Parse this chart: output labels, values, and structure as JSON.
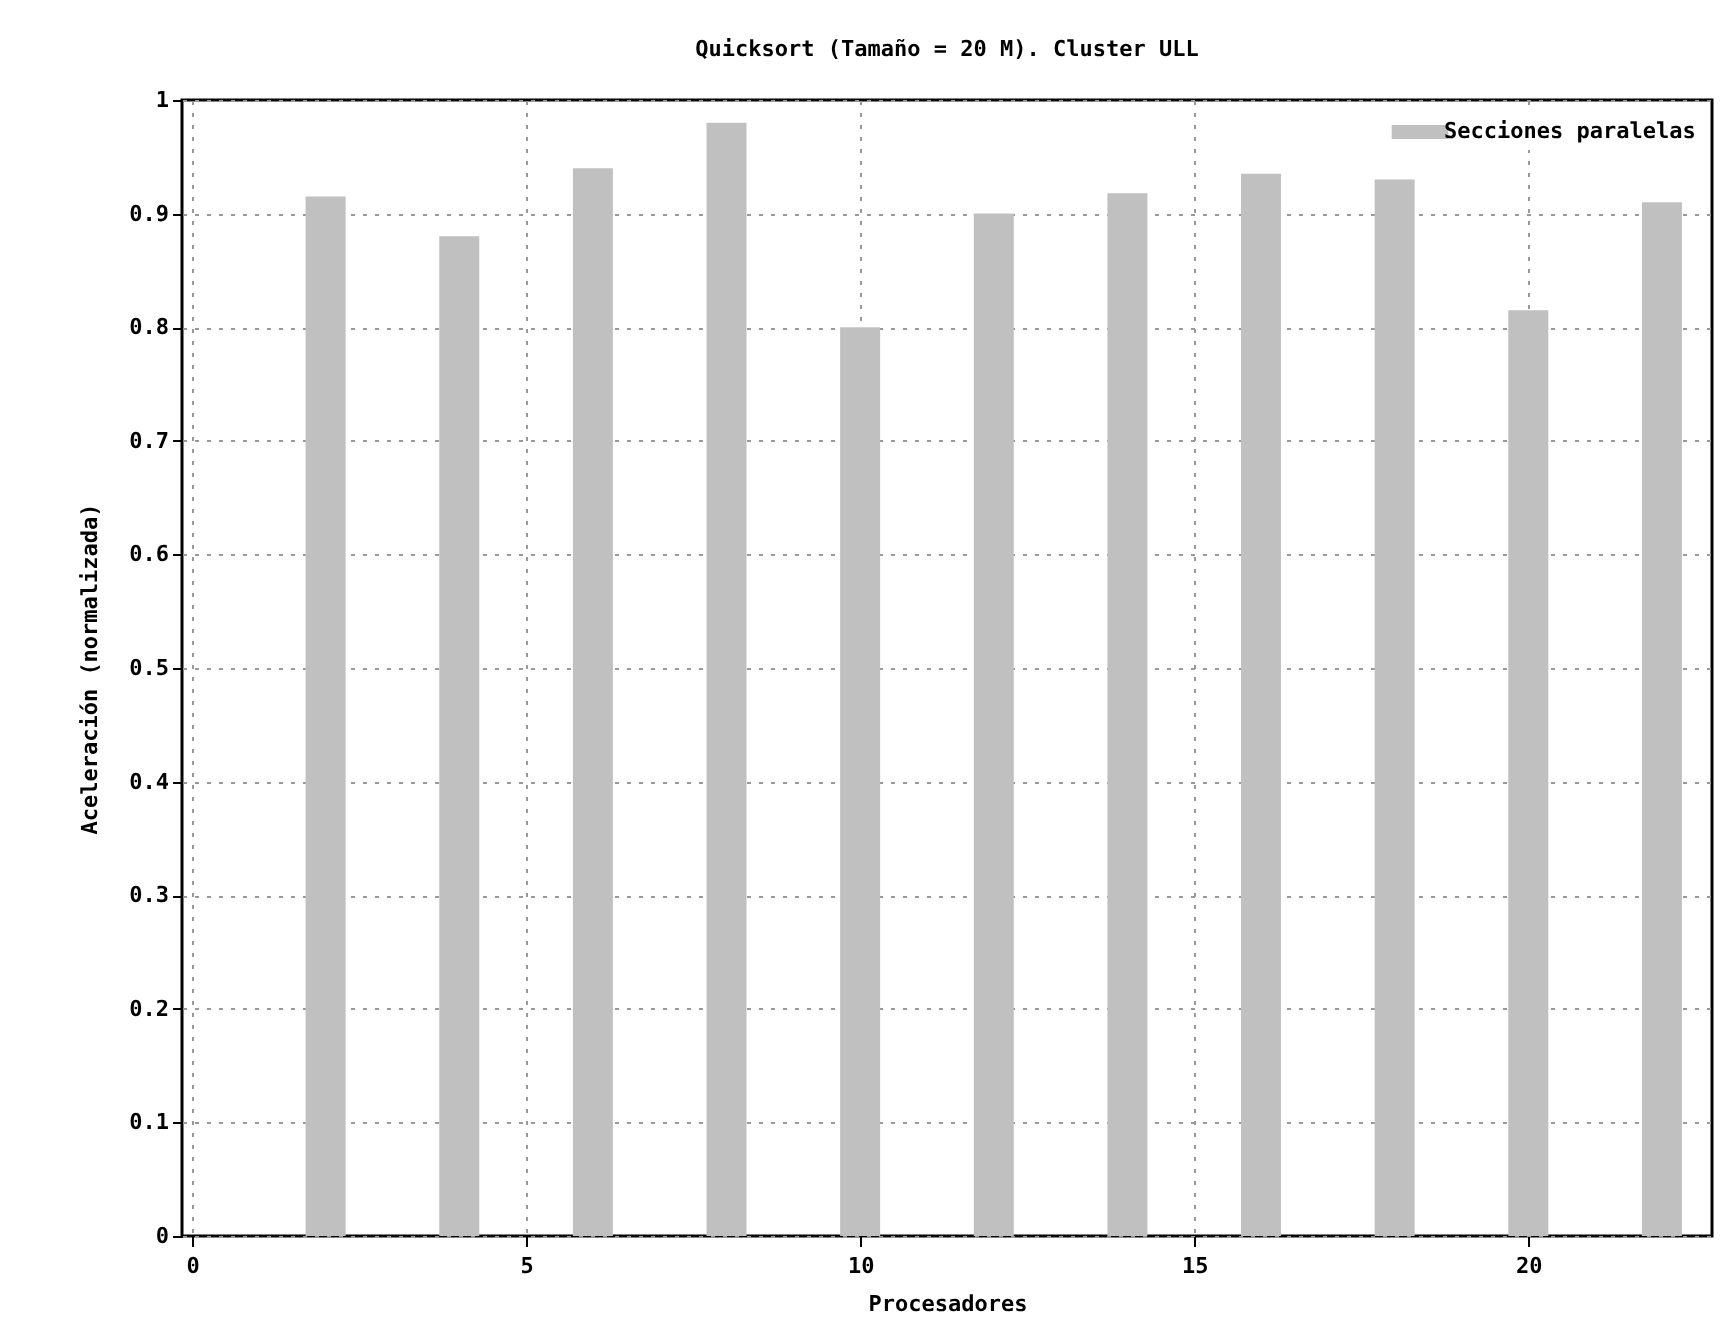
{
  "chart_data": {
    "type": "bar",
    "title": "Quicksort (Tamaño = 20 M). Cluster ULL",
    "xlabel": "Procesadores",
    "ylabel": "Aceleración (normalizada)",
    "x": [
      2,
      4,
      6,
      8,
      10,
      12,
      14,
      16,
      18,
      20,
      22
    ],
    "series": [
      {
        "name": "Secciones paralelas",
        "color": "#c0c0c0",
        "values": [
          0.915,
          0.88,
          0.94,
          0.98,
          0.8,
          0.9,
          0.918,
          0.935,
          0.93,
          0.815,
          0.91
        ]
      }
    ],
    "xlim": [
      0,
      22.6
    ],
    "xticks": [
      0,
      5,
      10,
      15,
      20
    ],
    "ylim": [
      0,
      1
    ],
    "yticks": [
      0,
      0.1,
      0.2,
      0.3,
      0.4,
      0.5,
      0.6,
      0.7,
      0.8,
      0.9,
      1
    ],
    "grid": true,
    "legend": "top right"
  }
}
